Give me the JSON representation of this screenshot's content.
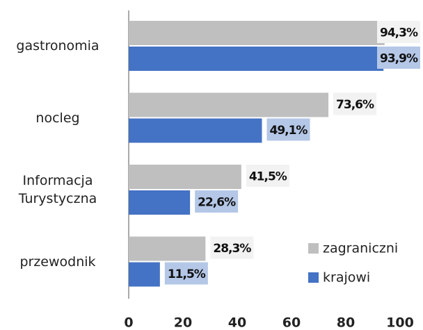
{
  "chart_data": {
    "type": "hbar",
    "categories": [
      "gastronomia",
      "nocleg",
      "Informacja Turystyczna",
      "przewodnik"
    ],
    "series": [
      {
        "name": "zagraniczni",
        "color": "#bfbfbf",
        "values": [
          94.3,
          73.6,
          41.5,
          28.3
        ],
        "value_labels": [
          "94,3%",
          "73,6%",
          "41,5%",
          "28,3%"
        ]
      },
      {
        "name": "krajowi",
        "color": "#4472c4",
        "values": [
          93.9,
          49.1,
          22.6,
          11.5
        ],
        "value_labels": [
          "93,9%",
          "49,1%",
          "22,6%",
          "11,5%"
        ]
      }
    ],
    "xlim": [
      0,
      100
    ],
    "xticks": [
      0,
      20,
      40,
      60,
      80,
      100
    ],
    "grid": false,
    "legend": "lower right"
  }
}
